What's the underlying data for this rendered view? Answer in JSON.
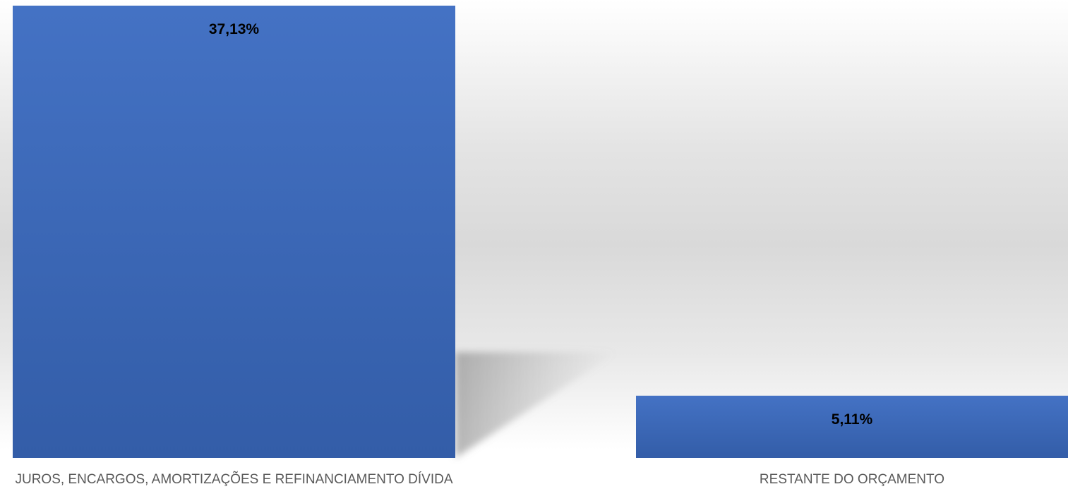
{
  "chart_data": {
    "type": "bar",
    "title": "",
    "xlabel": "",
    "ylabel": "",
    "categories": [
      "JUROS, ENCARGOS, AMORTIZAÇÕES E REFINANCIAMENTO DÍVIDA",
      "RESTANTE DO ORÇAMENTO"
    ],
    "values": [
      37.13,
      5.11
    ],
    "data_labels": [
      "37,13%",
      "5,11%"
    ],
    "ylim": [
      0,
      37.13
    ],
    "grid": false,
    "legend": "none",
    "bar_color": "#4472C4",
    "bar_color_dark": "#335DA8"
  }
}
